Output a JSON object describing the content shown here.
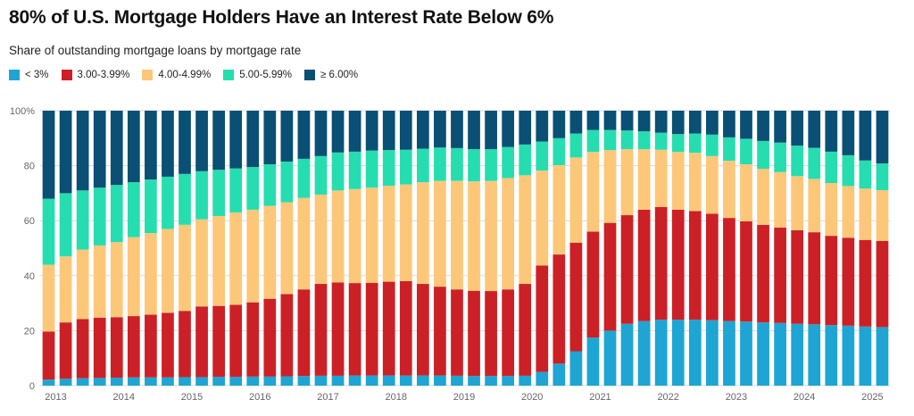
{
  "chart_data": {
    "type": "bar",
    "stacked": true,
    "title": "80% of U.S. Mortgage Holders Have an Interest Rate Below 6%",
    "subtitle": "Share of outstanding mortgage loans by mortgage rate",
    "xlabel": "",
    "ylabel": "",
    "ylim": [
      0,
      100
    ],
    "y_ticks": [
      "0",
      "20",
      "40",
      "60",
      "80",
      "100%"
    ],
    "x_tick_labels": [
      "2013",
      "2014",
      "2015",
      "2016",
      "2017",
      "2018",
      "2019",
      "2020",
      "2021",
      "2022",
      "2023",
      "2024",
      "2025"
    ],
    "legend_position": "top-left",
    "grid": true,
    "categories": [
      "2013 Q1",
      "2013 Q2",
      "2013 Q3",
      "2013 Q4",
      "2014 Q1",
      "2014 Q2",
      "2014 Q3",
      "2014 Q4",
      "2015 Q1",
      "2015 Q2",
      "2015 Q3",
      "2015 Q4",
      "2016 Q1",
      "2016 Q2",
      "2016 Q3",
      "2016 Q4",
      "2017 Q1",
      "2017 Q2",
      "2017 Q3",
      "2017 Q4",
      "2018 Q1",
      "2018 Q2",
      "2018 Q3",
      "2018 Q4",
      "2019 Q1",
      "2019 Q2",
      "2019 Q3",
      "2019 Q4",
      "2020 Q1",
      "2020 Q2",
      "2020 Q3",
      "2020 Q4",
      "2021 Q1",
      "2021 Q2",
      "2021 Q3",
      "2021 Q4",
      "2022 Q1",
      "2022 Q2",
      "2022 Q3",
      "2022 Q4",
      "2023 Q1",
      "2023 Q2",
      "2023 Q3",
      "2023 Q4",
      "2024 Q1",
      "2024 Q2",
      "2024 Q3",
      "2024 Q4",
      "2025 Q1",
      "2025 Q2"
    ],
    "series": [
      {
        "name": "< 3%",
        "color": "#1ea5d3",
        "values": [
          2.2,
          2.5,
          2.7,
          2.8,
          2.9,
          3.0,
          3.0,
          3.0,
          3.1,
          3.1,
          3.2,
          3.2,
          3.3,
          3.3,
          3.4,
          3.5,
          3.6,
          3.6,
          3.7,
          3.7,
          3.7,
          3.7,
          3.7,
          3.7,
          3.6,
          3.5,
          3.5,
          3.5,
          3.6,
          5.0,
          8.0,
          12.5,
          17.5,
          20.0,
          22.5,
          23.5,
          24.0,
          24.0,
          24.0,
          23.8,
          23.5,
          23.3,
          23.0,
          22.8,
          22.5,
          22.3,
          22.0,
          21.8,
          21.5,
          21.3
        ]
      },
      {
        "name": "3.00-3.99%",
        "color": "#cc2027",
        "values": [
          17.5,
          20.5,
          21.5,
          21.9,
          22.0,
          22.3,
          22.8,
          23.5,
          24.1,
          25.7,
          25.8,
          26.2,
          27.0,
          28.3,
          29.9,
          31.5,
          33.4,
          33.9,
          33.6,
          33.7,
          34.1,
          34.3,
          33.3,
          32.3,
          31.4,
          31.0,
          30.9,
          31.5,
          33.4,
          38.7,
          39.7,
          39.5,
          38.5,
          39.2,
          39.5,
          40.5,
          41.0,
          40.0,
          39.5,
          38.7,
          37.5,
          36.5,
          35.5,
          34.7,
          34.0,
          33.5,
          32.5,
          32.0,
          31.5,
          31.3
        ]
      },
      {
        "name": "4.00-4.99%",
        "color": "#fdc77a",
        "values": [
          24.3,
          24.0,
          25.3,
          26.3,
          27.3,
          28.7,
          29.7,
          30.5,
          31.3,
          31.7,
          32.7,
          33.6,
          33.7,
          33.8,
          33.4,
          33.3,
          32.5,
          33.5,
          34.2,
          34.6,
          34.9,
          35.2,
          37.0,
          38.5,
          39.5,
          39.8,
          40.1,
          40.5,
          39.5,
          34.5,
          32.5,
          31.0,
          29.0,
          26.5,
          24.0,
          22.0,
          20.8,
          21.0,
          21.2,
          21.0,
          20.8,
          20.7,
          20.4,
          20.2,
          19.7,
          19.4,
          19.2,
          18.8,
          18.7,
          18.5
        ]
      },
      {
        "name": "5.00-5.99%",
        "color": "#26ddb0",
        "values": [
          24.0,
          23.0,
          21.5,
          21.0,
          20.8,
          20.0,
          19.5,
          19.0,
          18.5,
          17.5,
          16.8,
          16.0,
          15.5,
          15.1,
          14.8,
          14.2,
          14.0,
          13.8,
          13.6,
          13.5,
          13.0,
          12.6,
          12.2,
          12.1,
          11.9,
          11.7,
          11.5,
          11.3,
          11.2,
          10.6,
          9.8,
          8.7,
          8.0,
          7.3,
          6.8,
          6.5,
          6.2,
          6.5,
          7.0,
          7.8,
          8.5,
          9.3,
          10.1,
          10.7,
          11.1,
          11.3,
          11.4,
          11.2,
          10.2,
          9.7
        ]
      },
      {
        "name": "≥ 6.00%",
        "color": "#0a4f74",
        "values": [
          32.0,
          30.0,
          29.0,
          28.0,
          27.0,
          26.0,
          25.0,
          24.0,
          23.0,
          22.0,
          21.5,
          21.0,
          20.5,
          19.5,
          18.5,
          17.5,
          16.5,
          15.2,
          14.9,
          14.5,
          14.3,
          14.2,
          13.8,
          13.4,
          13.6,
          14.0,
          14.0,
          13.2,
          12.3,
          11.2,
          10.0,
          8.3,
          7.0,
          7.0,
          7.2,
          7.5,
          8.0,
          8.5,
          8.3,
          8.7,
          9.7,
          10.2,
          11.0,
          11.6,
          12.7,
          13.5,
          14.9,
          16.2,
          18.1,
          19.2
        ]
      }
    ]
  }
}
